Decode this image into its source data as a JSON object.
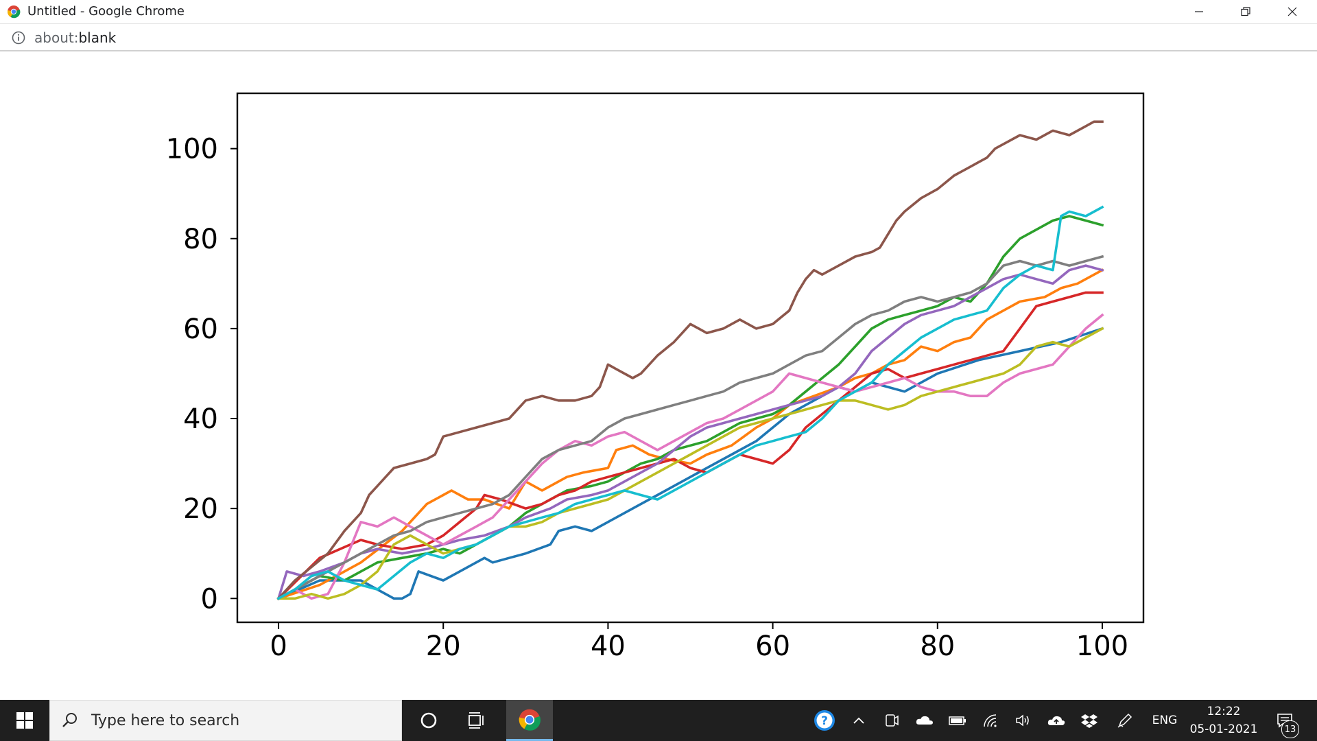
{
  "window": {
    "title": "Untitled - Google Chrome",
    "url_prefix": "about:",
    "url_path": "blank"
  },
  "taskbar": {
    "search_placeholder": "Type here to search",
    "language": "ENG",
    "time": "12:22",
    "date": "05-01-2021",
    "notification_count": "13"
  },
  "icons": {
    "start": "windows-logo-icon",
    "search": "search-icon",
    "cortana": "circle-icon",
    "task_view": "task-view-icon",
    "chrome": "chrome-icon",
    "help": "help-icon",
    "chevron": "chevron-up-icon",
    "meet": "meet-now-icon",
    "cloud": "onedrive-icon",
    "battery": "battery-icon",
    "wifi": "wifi-icon",
    "volume": "volume-icon",
    "upload": "upload-icon",
    "dropbox": "dropbox-icon",
    "pen": "pen-icon",
    "notifications": "notification-icon"
  },
  "chart_data": {
    "type": "line",
    "title": "",
    "xlabel": "",
    "ylabel": "",
    "xlim": [
      -5,
      105
    ],
    "ylim": [
      -5.3,
      112.3
    ],
    "xticks": [
      0,
      20,
      40,
      60,
      80,
      100
    ],
    "yticks": [
      0,
      20,
      40,
      60,
      80,
      100
    ],
    "grid": false,
    "series": [
      {
        "color": "#1f77b4",
        "x": [
          0,
          5,
          10,
          14,
          15,
          16,
          17,
          20,
          22,
          25,
          26,
          28,
          30,
          33,
          34,
          36,
          38,
          40,
          42,
          44,
          46,
          48,
          50,
          52,
          55,
          58,
          60,
          62,
          64,
          66,
          68,
          70,
          72,
          74,
          76,
          78,
          80,
          85,
          90,
          95,
          100
        ],
        "y": [
          0,
          4,
          4,
          0,
          0,
          1,
          6,
          4,
          6,
          9,
          8,
          9,
          10,
          12,
          15,
          16,
          15,
          17,
          19,
          21,
          23,
          25,
          27,
          29,
          32,
          35,
          38,
          41,
          43,
          45,
          47,
          46,
          48,
          47,
          46,
          48,
          50,
          53,
          55,
          57,
          60
        ]
      },
      {
        "color": "#ff7f0e",
        "x": [
          0,
          5,
          10,
          15,
          18,
          20,
          21,
          23,
          25,
          28,
          30,
          32,
          35,
          37,
          40,
          41,
          43,
          45,
          47,
          50,
          52,
          55,
          58,
          60,
          62,
          65,
          68,
          70,
          72,
          74,
          76,
          78,
          80,
          82,
          84,
          86,
          88,
          90,
          93,
          95,
          97,
          100
        ],
        "y": [
          0,
          3,
          8,
          15,
          21,
          23,
          24,
          22,
          22,
          20,
          26,
          24,
          27,
          28,
          29,
          33,
          34,
          32,
          31,
          30,
          32,
          34,
          38,
          40,
          43,
          45,
          47,
          49,
          50,
          52,
          53,
          56,
          55,
          57,
          58,
          62,
          64,
          66,
          67,
          69,
          70,
          73
        ]
      },
      {
        "color": "#2ca02c",
        "x": [
          0,
          5,
          8,
          10,
          12,
          15,
          18,
          20,
          22,
          25,
          28,
          30,
          33,
          35,
          38,
          40,
          42,
          44,
          46,
          48,
          50,
          52,
          54,
          56,
          58,
          60,
          62,
          64,
          66,
          68,
          70,
          72,
          74,
          76,
          78,
          80,
          82,
          84,
          86,
          88,
          90,
          92,
          94,
          96,
          98,
          100
        ],
        "y": [
          0,
          5,
          4,
          6,
          8,
          9,
          10,
          11,
          10,
          13,
          16,
          19,
          22,
          24,
          25,
          26,
          28,
          30,
          31,
          33,
          34,
          35,
          37,
          39,
          40,
          41,
          43,
          46,
          49,
          52,
          56,
          60,
          62,
          63,
          64,
          65,
          67,
          66,
          70,
          76,
          80,
          82,
          84,
          85,
          84,
          83
        ]
      },
      {
        "color": "#d62728",
        "x": [
          0,
          5,
          10,
          12,
          15,
          18,
          20,
          22,
          24,
          25,
          27,
          30,
          32,
          34,
          36,
          38,
          40,
          42,
          44,
          46,
          48,
          50,
          52,
          54,
          56,
          58,
          60,
          62,
          64,
          66,
          68,
          70,
          72,
          74,
          76,
          78,
          80,
          82,
          84,
          86,
          88,
          90,
          92,
          94,
          96,
          98,
          100
        ],
        "y": [
          0,
          9,
          13,
          12,
          11,
          12,
          14,
          17,
          20,
          23,
          22,
          20,
          21,
          23,
          24,
          26,
          27,
          28,
          29,
          30,
          31,
          29,
          28,
          30,
          32,
          31,
          30,
          33,
          38,
          41,
          44,
          47,
          50,
          51,
          49,
          50,
          51,
          52,
          53,
          54,
          55,
          60,
          65,
          66,
          67,
          68,
          68
        ]
      },
      {
        "color": "#9467bd",
        "x": [
          0,
          1,
          3,
          5,
          8,
          10,
          12,
          15,
          18,
          20,
          22,
          25,
          28,
          30,
          33,
          35,
          38,
          40,
          42,
          44,
          46,
          48,
          50,
          52,
          54,
          56,
          58,
          60,
          62,
          64,
          66,
          68,
          70,
          72,
          74,
          76,
          78,
          80,
          82,
          84,
          86,
          88,
          90,
          92,
          94,
          96,
          98,
          100
        ],
        "y": [
          0,
          6,
          5,
          6,
          8,
          10,
          11,
          10,
          11,
          12,
          13,
          14,
          16,
          18,
          20,
          22,
          23,
          24,
          26,
          28,
          30,
          33,
          36,
          38,
          39,
          40,
          41,
          42,
          43,
          44,
          45,
          47,
          50,
          55,
          58,
          61,
          63,
          64,
          65,
          67,
          69,
          71,
          72,
          71,
          70,
          73,
          74,
          73
        ]
      },
      {
        "color": "#8c564b",
        "x": [
          0,
          2,
          4,
          6,
          8,
          10,
          11,
          12,
          13,
          14,
          16,
          18,
          19,
          20,
          22,
          24,
          26,
          28,
          29,
          30,
          32,
          34,
          36,
          38,
          39,
          40,
          41,
          43,
          44,
          45,
          46,
          48,
          49,
          50,
          52,
          54,
          56,
          58,
          60,
          62,
          63,
          64,
          65,
          66,
          68,
          70,
          72,
          73,
          74,
          75,
          76,
          78,
          80,
          82,
          84,
          85,
          86,
          87,
          88,
          90,
          92,
          94,
          96,
          98,
          99,
          100
        ],
        "y": [
          0,
          4,
          7,
          10,
          15,
          19,
          23,
          25,
          27,
          29,
          30,
          31,
          32,
          36,
          37,
          38,
          39,
          40,
          42,
          44,
          45,
          44,
          44,
          45,
          47,
          52,
          51,
          49,
          50,
          52,
          54,
          57,
          59,
          61,
          59,
          60,
          62,
          60,
          61,
          64,
          68,
          71,
          73,
          72,
          74,
          76,
          77,
          78,
          81,
          84,
          86,
          89,
          91,
          94,
          96,
          97,
          98,
          100,
          101,
          103,
          102,
          104,
          103,
          105,
          106,
          106
        ]
      },
      {
        "color": "#e377c2",
        "x": [
          0,
          2,
          4,
          6,
          8,
          10,
          12,
          14,
          16,
          18,
          20,
          22,
          24,
          26,
          28,
          30,
          32,
          34,
          36,
          38,
          40,
          42,
          44,
          46,
          48,
          50,
          52,
          54,
          56,
          58,
          60,
          62,
          64,
          66,
          68,
          70,
          72,
          74,
          76,
          78,
          80,
          82,
          84,
          86,
          88,
          90,
          92,
          94,
          96,
          98,
          100
        ],
        "y": [
          0,
          2,
          0,
          1,
          8,
          17,
          16,
          18,
          16,
          14,
          12,
          14,
          16,
          18,
          22,
          26,
          30,
          33,
          35,
          34,
          36,
          37,
          35,
          33,
          35,
          37,
          39,
          40,
          42,
          44,
          46,
          50,
          49,
          48,
          47,
          46,
          47,
          48,
          49,
          47,
          46,
          46,
          45,
          45,
          48,
          50,
          51,
          52,
          56,
          60,
          63
        ]
      },
      {
        "color": "#7f7f7f",
        "x": [
          0,
          2,
          4,
          6,
          8,
          10,
          12,
          14,
          16,
          18,
          20,
          22,
          24,
          26,
          28,
          30,
          32,
          34,
          36,
          38,
          40,
          42,
          44,
          46,
          48,
          50,
          52,
          54,
          56,
          58,
          60,
          62,
          64,
          66,
          68,
          70,
          72,
          74,
          76,
          78,
          80,
          82,
          84,
          86,
          88,
          90,
          92,
          94,
          96,
          98,
          100
        ],
        "y": [
          0,
          2,
          4,
          6,
          8,
          10,
          12,
          14,
          15,
          17,
          18,
          19,
          20,
          21,
          23,
          27,
          31,
          33,
          34,
          35,
          38,
          40,
          41,
          42,
          43,
          44,
          45,
          46,
          48,
          49,
          50,
          52,
          54,
          55,
          58,
          61,
          63,
          64,
          66,
          67,
          66,
          67,
          68,
          70,
          74,
          75,
          74,
          75,
          74,
          75,
          76
        ]
      },
      {
        "color": "#bcbd22",
        "x": [
          0,
          2,
          4,
          6,
          8,
          10,
          12,
          14,
          16,
          18,
          20,
          22,
          24,
          26,
          28,
          30,
          32,
          34,
          36,
          38,
          40,
          42,
          44,
          46,
          48,
          50,
          52,
          54,
          56,
          58,
          60,
          62,
          64,
          66,
          68,
          70,
          72,
          74,
          76,
          78,
          80,
          82,
          84,
          86,
          88,
          90,
          92,
          94,
          96,
          98,
          100
        ],
        "y": [
          0,
          0,
          1,
          0,
          1,
          3,
          6,
          12,
          14,
          12,
          10,
          11,
          12,
          14,
          16,
          16,
          17,
          19,
          20,
          21,
          22,
          24,
          26,
          28,
          30,
          32,
          34,
          36,
          38,
          39,
          40,
          41,
          42,
          43,
          44,
          44,
          43,
          42,
          43,
          45,
          46,
          47,
          48,
          49,
          50,
          52,
          56,
          57,
          56,
          58,
          60
        ]
      },
      {
        "color": "#17becf",
        "x": [
          0,
          2,
          4,
          6,
          8,
          10,
          12,
          14,
          16,
          18,
          20,
          22,
          24,
          26,
          28,
          30,
          32,
          34,
          36,
          38,
          40,
          42,
          44,
          46,
          48,
          50,
          52,
          54,
          56,
          58,
          60,
          62,
          64,
          66,
          68,
          70,
          72,
          74,
          76,
          78,
          80,
          82,
          84,
          86,
          88,
          90,
          92,
          94,
          95,
          96,
          98,
          100
        ],
        "y": [
          0,
          2,
          5,
          6,
          4,
          3,
          2,
          5,
          8,
          10,
          9,
          11,
          12,
          14,
          16,
          17,
          18,
          19,
          21,
          22,
          23,
          24,
          23,
          22,
          24,
          26,
          28,
          30,
          32,
          34,
          35,
          36,
          37,
          40,
          44,
          46,
          48,
          52,
          55,
          58,
          60,
          62,
          63,
          64,
          69,
          72,
          74,
          73,
          85,
          86,
          85,
          87
        ]
      }
    ]
  }
}
